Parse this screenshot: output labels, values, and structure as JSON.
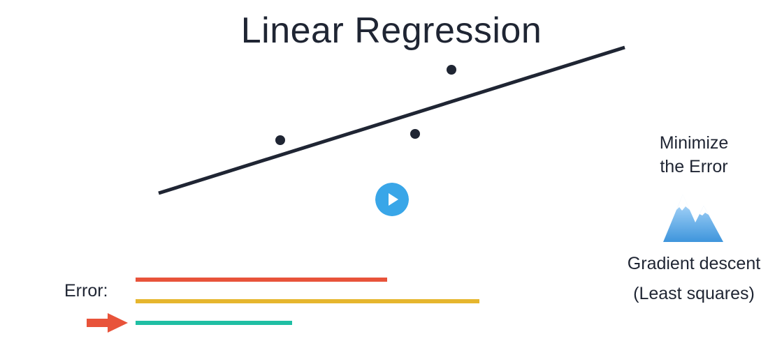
{
  "title": "Linear Regression",
  "side_panel": {
    "minimize_line1": "Minimize",
    "minimize_line2": "the Error",
    "icon": "mountain-icon",
    "method": "Gradient descent",
    "method_alt": "(Least squares)"
  },
  "error_section": {
    "label": "Error:",
    "bars": [
      {
        "name": "error-bar-red",
        "color": "#e8533a",
        "length": 360
      },
      {
        "name": "error-bar-yellow",
        "color": "#e6b62e",
        "length": 492
      },
      {
        "name": "error-bar-teal",
        "color": "#1fbfa4",
        "length": 224
      }
    ],
    "pointer_icon": "arrow-right-icon",
    "pointer_color": "#e8533a"
  },
  "play_button": {
    "icon": "play-icon",
    "color": "#39a6e8"
  },
  "colors": {
    "text": "#1f2533",
    "line": "#1f2533",
    "mountain_light": "#d6ebfb",
    "mountain_dark": "#3e95dc"
  }
}
